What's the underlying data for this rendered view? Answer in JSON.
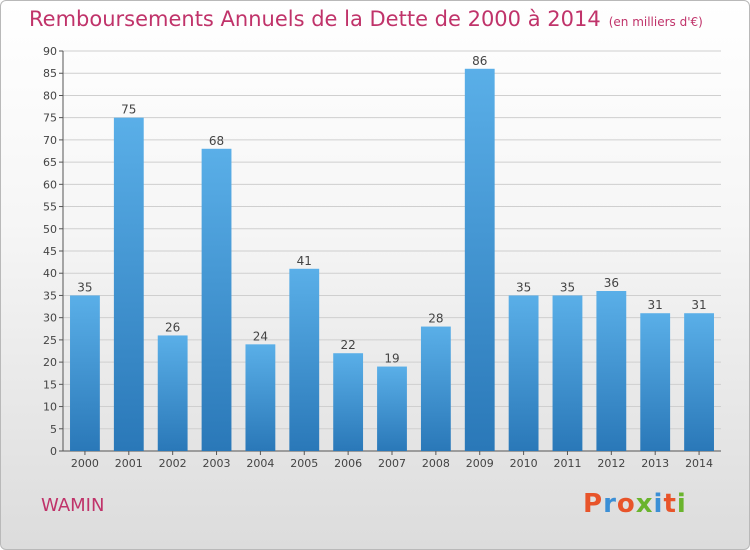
{
  "header": {
    "title": "Remboursements Annuels de la Dette de 2000 à 2014",
    "unit": "(en milliers d'€)"
  },
  "footer": {
    "commune": "WAMIN",
    "logo": "Proxiti"
  },
  "colors": {
    "title": "#c0336a",
    "bar_top": "#5aafe8",
    "bar_bottom": "#2a78b8",
    "grid": "#cfcfcf",
    "logo_letters": [
      "#e8542a",
      "#3b8fd6",
      "#e8542a",
      "#6ab42d",
      "#3b8fd6",
      "#e8542a",
      "#6ab42d"
    ]
  },
  "chart_data": {
    "type": "bar",
    "title": "Remboursements Annuels de la Dette de 2000 à 2014",
    "xlabel": "",
    "ylabel": "",
    "ylim": [
      0,
      90
    ],
    "ytick_step": 5,
    "grid": true,
    "categories": [
      "2000",
      "2001",
      "2002",
      "2003",
      "2004",
      "2005",
      "2006",
      "2007",
      "2008",
      "2009",
      "2010",
      "2011",
      "2012",
      "2013",
      "2014"
    ],
    "values": [
      35,
      75,
      26,
      68,
      24,
      41,
      22,
      19,
      28,
      86,
      35,
      35,
      36,
      31,
      31
    ],
    "data_labels": [
      "35",
      "75",
      "26",
      "68",
      "24",
      "41",
      "22",
      "19",
      "28",
      "86",
      "35",
      "35",
      "36",
      "31",
      "31"
    ]
  }
}
